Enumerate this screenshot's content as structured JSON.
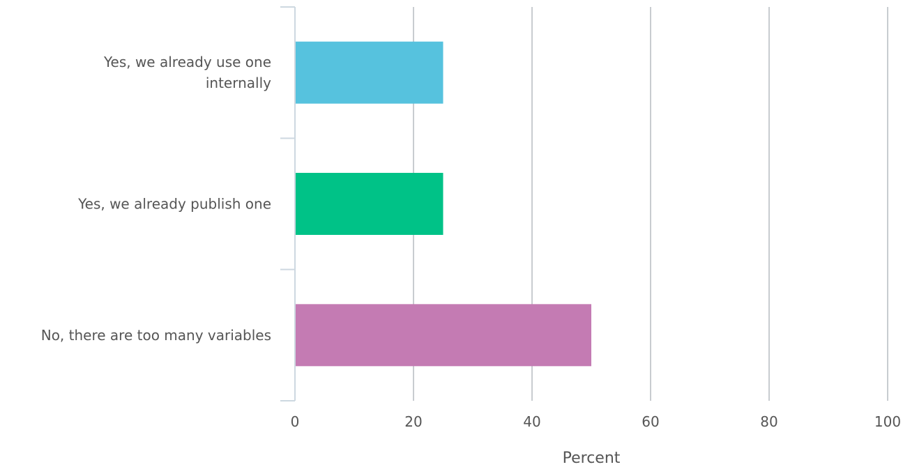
{
  "chart_data": {
    "type": "bar",
    "orientation": "horizontal",
    "categories": [
      [
        "Yes, we already use one",
        "internally"
      ],
      [
        "Yes, we already publish one"
      ],
      [
        "No, there are too many variables"
      ]
    ],
    "values": [
      25,
      25,
      50
    ],
    "colors": [
      "#56C2DE",
      "#00C287",
      "#C47BB3"
    ],
    "xlabel": "Percent",
    "ylabel": "",
    "xlim": [
      0,
      100
    ],
    "xticks": [
      "0",
      "20",
      "40",
      "60",
      "80",
      "100"
    ],
    "grid": true
  }
}
